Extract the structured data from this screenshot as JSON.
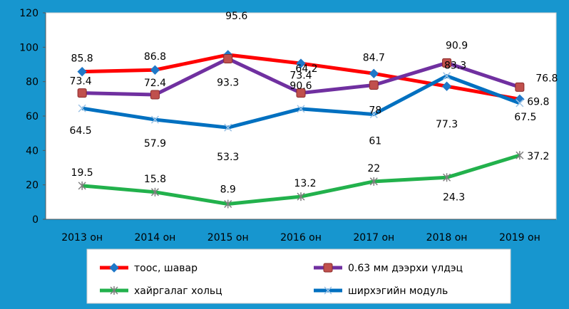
{
  "chart_data": {
    "type": "line",
    "categories": [
      "2013 он",
      "2014 он",
      "2015 он",
      "2016 он",
      "2017 он",
      "2018 он",
      "2019 он"
    ],
    "ylim": [
      0,
      120
    ],
    "yticks": [
      0,
      20,
      40,
      60,
      80,
      100,
      120
    ],
    "grid": false,
    "legend_position": "bottom",
    "series": [
      {
        "name": "тоос, шавар",
        "values": [
          85.8,
          86.8,
          95.6,
          90.6,
          84.7,
          77.3,
          69.8
        ],
        "color": "#ff0000",
        "marker": "diamond",
        "labels": [
          "85.8",
          "86.8",
          "95.6",
          "90.6",
          "84.7",
          "77.3",
          "69.8"
        ]
      },
      {
        "name": "0.63 мм дээрхи үлдэц",
        "values": [
          73.4,
          72.4,
          93.3,
          73.4,
          78,
          90.9,
          76.8
        ],
        "color": "#7030a0",
        "marker": "square",
        "labels": [
          "73.4",
          "72.4",
          "93.3",
          "73.4",
          "78",
          "90.9",
          "76.8"
        ]
      },
      {
        "name": "хайргалаг хольц",
        "values": [
          19.5,
          15.8,
          8.9,
          13.2,
          22,
          24.3,
          37.2
        ],
        "color": "#22b14c",
        "marker": "star",
        "labels": [
          "19.5",
          "15.8",
          "8.9",
          "13.2",
          "22",
          "24.3",
          "37.2"
        ]
      },
      {
        "name": "ширхэгийн модуль",
        "values": [
          64.5,
          57.9,
          53.3,
          64.2,
          61,
          83.3,
          67.5
        ],
        "color": "#0070c0",
        "marker": "x",
        "labels": [
          "64.5",
          "57.9",
          "53.3",
          "64.2",
          "61",
          "83.3",
          "67.5"
        ]
      }
    ]
  }
}
